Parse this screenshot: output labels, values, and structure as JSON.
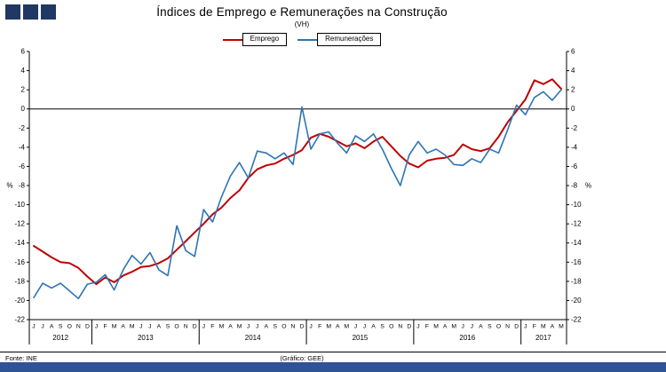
{
  "logo": {
    "color": "#1F3864",
    "squares": 3
  },
  "header": {
    "title": "Índices de Emprego e Remunerações na Construção",
    "subtitle": "(VH)"
  },
  "legend": [
    {
      "label": "Emprego",
      "color": "#C00000"
    },
    {
      "label": "Remunerações",
      "color": "#2E74B5"
    }
  ],
  "footer": {
    "source": "Fonte: INE",
    "credit": "(Gráfico:  GEE)",
    "bar_color": "#2E5496"
  },
  "chart_data": {
    "type": "line",
    "title": "Índices de Emprego e Remunerações na Construção (VH)",
    "xlabel": "",
    "ylabel": "%",
    "ylim": [
      -22,
      6
    ],
    "ytick_step": 2,
    "grid": "zero-line-only",
    "legend_position": "top-center",
    "x_month_labels": [
      "J",
      "J",
      "A",
      "S",
      "O",
      "N",
      "D",
      "J",
      "F",
      "M",
      "A",
      "M",
      "J",
      "J",
      "A",
      "S",
      "O",
      "N",
      "D",
      "J",
      "F",
      "M",
      "A",
      "M",
      "J",
      "J",
      "A",
      "S",
      "O",
      "N",
      "D",
      "J",
      "F",
      "M",
      "A",
      "M",
      "J",
      "J",
      "A",
      "S",
      "O",
      "N",
      "D",
      "J",
      "F",
      "M",
      "A",
      "M",
      "J",
      "J",
      "A",
      "S",
      "O",
      "N",
      "D",
      "J",
      "F",
      "M",
      "A",
      "M"
    ],
    "year_groups": [
      {
        "label": "2012",
        "count": 7
      },
      {
        "label": "2013",
        "count": 12
      },
      {
        "label": "2014",
        "count": 12
      },
      {
        "label": "2015",
        "count": 12
      },
      {
        "label": "2016",
        "count": 12
      },
      {
        "label": "2017",
        "count": 5
      }
    ],
    "series": [
      {
        "name": "Emprego",
        "color": "#C00000",
        "values": [
          -14.3,
          -14.9,
          -15.5,
          -16.0,
          -16.1,
          -16.6,
          -17.5,
          -18.3,
          -17.6,
          -18.1,
          -17.4,
          -17.0,
          -16.5,
          -16.4,
          -16.1,
          -15.6,
          -14.7,
          -13.8,
          -12.9,
          -12.0,
          -11.0,
          -10.3,
          -9.3,
          -8.5,
          -7.2,
          -6.3,
          -5.9,
          -5.7,
          -5.2,
          -4.8,
          -4.3,
          -3.0,
          -2.6,
          -2.9,
          -3.4,
          -3.9,
          -3.6,
          -4.1,
          -3.4,
          -2.9,
          -3.9,
          -4.9,
          -5.7,
          -6.1,
          -5.4,
          -5.2,
          -5.1,
          -4.8,
          -3.7,
          -4.2,
          -4.4,
          -4.1,
          -2.9,
          -1.4,
          -0.2,
          1.0,
          3.0,
          2.6,
          3.1,
          2.1
        ]
      },
      {
        "name": "Remunerações",
        "color": "#2E74B5",
        "values": [
          -19.7,
          -18.2,
          -18.7,
          -18.2,
          -19.0,
          -19.8,
          -18.3,
          -18.1,
          -17.3,
          -18.9,
          -16.8,
          -15.3,
          -16.2,
          -15.0,
          -16.8,
          -17.4,
          -12.2,
          -14.8,
          -15.4,
          -10.5,
          -11.8,
          -9.2,
          -7.0,
          -5.6,
          -7.2,
          -4.4,
          -4.6,
          -5.2,
          -4.6,
          -5.8,
          0.2,
          -4.2,
          -2.6,
          -2.4,
          -3.6,
          -4.6,
          -2.8,
          -3.4,
          -2.6,
          -4.2,
          -6.2,
          -8.0,
          -4.8,
          -3.4,
          -4.6,
          -4.2,
          -4.8,
          -5.8,
          -5.9,
          -5.2,
          -5.6,
          -4.2,
          -4.6,
          -2.2,
          0.4,
          -0.6,
          1.2,
          1.8,
          0.9,
          2.0
        ]
      }
    ]
  }
}
